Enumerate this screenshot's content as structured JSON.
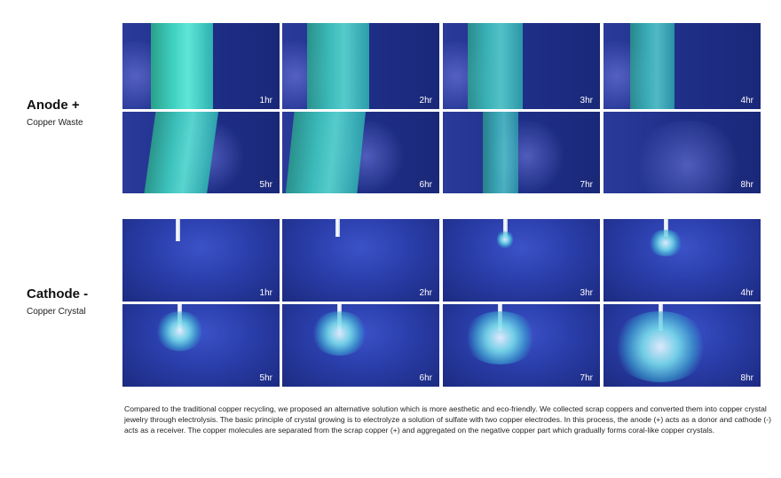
{
  "anode": {
    "title": "Anode +",
    "subtitle": "Copper Waste",
    "times": [
      "1hr",
      "2hr",
      "3hr",
      "4hr",
      "5hr",
      "6hr",
      "7hr",
      "8hr"
    ]
  },
  "cathode": {
    "title": "Cathode -",
    "subtitle": "Copper Crystal",
    "times": [
      "1hr",
      "2hr",
      "3hr",
      "4hr",
      "5hr",
      "6hr",
      "7hr",
      "8hr"
    ]
  },
  "description": "Compared to the traditional copper recycling, we proposed an alternative solution which is more aesthetic and eco-friendly. We collected scrap coppers and converted them into copper crystal jewelry through electrolysis. The basic principle of crystal growing is to electrolyze a solution of sulfate with two copper electrodes. In this process, the anode (+) acts as a donor and cathode (-) acts as a receiver. The copper molecules are separated from the scrap copper (+) and aggregated on the negative copper part which gradually forms coral-like copper crystals."
}
